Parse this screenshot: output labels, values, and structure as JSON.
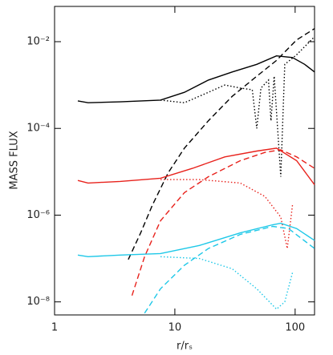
{
  "chart_data": {
    "type": "line",
    "xlabel": "r/rₛ",
    "ylabel": "MASS FLUX",
    "xscale": "log",
    "yscale": "log",
    "xlim": [
      1,
      145
    ],
    "ylim": [
      5e-09,
      0.065
    ],
    "xticks": [
      1,
      10,
      100
    ],
    "yticks": [
      {
        "value": 1e-08,
        "label": "10⁻⁸"
      },
      {
        "value": 1e-06,
        "label": "10⁻⁶"
      },
      {
        "value": 0.0001,
        "label": "10⁻⁴"
      },
      {
        "value": 0.01,
        "label": "10⁻²"
      }
    ],
    "series": [
      {
        "color": "#000000",
        "style": "solid",
        "x": [
          1.56,
          1.9,
          3.5,
          7.6,
          12,
          19,
          30,
          48,
          70,
          95,
          120,
          145
        ],
        "values": [
          0.00043,
          0.00039,
          0.00041,
          0.00045,
          0.00068,
          0.0013,
          0.002,
          0.003,
          0.0047,
          0.0043,
          0.003,
          0.002
        ]
      },
      {
        "color": "#000000",
        "style": "dashed",
        "x": [
          4.1,
          5.2,
          6.5,
          8.8,
          12,
          19,
          30,
          48,
          70,
          103,
          145
        ],
        "values": [
          9.5e-08,
          3.9e-07,
          1.7e-06,
          9.5e-06,
          3.5e-05,
          0.00015,
          0.00055,
          0.0016,
          0.0037,
          0.011,
          0.02
        ]
      },
      {
        "color": "#000000",
        "style": "dotted",
        "x": [
          7.6,
          12,
          19,
          26,
          35,
          44,
          48,
          52,
          60,
          63,
          67,
          76,
          82,
          103,
          145
        ],
        "values": [
          0.00045,
          0.00039,
          0.00068,
          0.001,
          0.00085,
          0.00078,
          0.0001,
          0.00085,
          0.0013,
          0.00015,
          0.0016,
          7.7e-06,
          0.003,
          0.005,
          0.013
        ]
      },
      {
        "color": "#e8221c",
        "style": "solid",
        "x": [
          1.56,
          1.9,
          3.5,
          7.6,
          14,
          26,
          48,
          70,
          103,
          145
        ],
        "values": [
          6.3e-06,
          5.5e-06,
          6e-06,
          7.1e-06,
          1.2e-05,
          2.2e-05,
          3e-05,
          3.5e-05,
          1.8e-05,
          5e-06
        ]
      },
      {
        "color": "#e8221c",
        "style": "dashed",
        "x": [
          4.4,
          5.6,
          7.6,
          12,
          19,
          35,
          56,
          76,
          103,
          145
        ],
        "values": [
          1.4e-08,
          1.1e-07,
          7.4e-07,
          3.3e-06,
          7.7e-06,
          1.8e-05,
          2.8e-05,
          3.2e-05,
          2.2e-05,
          1.2e-05
        ]
      },
      {
        "color": "#e8221c",
        "style": "dotted",
        "x": [
          7.6,
          16,
          35,
          56,
          76,
          86,
          95
        ],
        "values": [
          6.6e-06,
          6.6e-06,
          5.5e-06,
          2.7e-06,
          9e-07,
          1.7e-07,
          1.7e-06
        ]
      },
      {
        "color": "#1ec8e8",
        "style": "solid",
        "x": [
          1.56,
          1.9,
          3.5,
          7.6,
          16,
          35,
          65,
          76,
          103,
          145
        ],
        "values": [
          1.2e-07,
          1.1e-07,
          1.2e-07,
          1.3e-07,
          2e-07,
          3.9e-07,
          6e-07,
          6.5e-07,
          4.9e-07,
          2.6e-07
        ]
      },
      {
        "color": "#1ec8e8",
        "style": "dashed",
        "x": [
          5.6,
          7.6,
          12,
          19,
          35,
          65,
          88,
          145
        ],
        "values": [
          5.5e-09,
          2e-08,
          7e-08,
          1.7e-07,
          3.6e-07,
          5.5e-07,
          4.9e-07,
          1.7e-07
        ]
      },
      {
        "color": "#1ec8e8",
        "style": "dotted",
        "x": [
          7.6,
          16,
          30,
          48,
          70,
          82,
          95
        ],
        "values": [
          1.1e-07,
          1e-07,
          5.8e-08,
          2e-08,
          6.8e-09,
          1e-08,
          4.7e-08
        ]
      }
    ]
  }
}
